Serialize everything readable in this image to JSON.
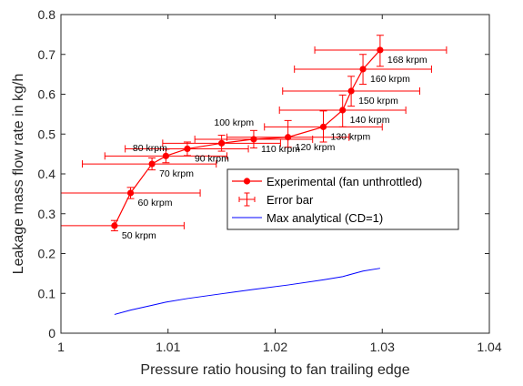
{
  "chart_data": {
    "type": "line",
    "xlabel": "Pressure ratio housing to fan trailing edge",
    "ylabel": "Leakage mass flow rate in kg/h",
    "xlim": [
      1,
      1.04
    ],
    "ylim": [
      0,
      0.8
    ],
    "xticks": [
      1,
      1.01,
      1.02,
      1.03,
      1.04
    ],
    "xtick_labels": [
      "1",
      "1.01",
      "1.02",
      "1.03",
      "1.04"
    ],
    "yticks": [
      0,
      0.1,
      0.2,
      0.3,
      0.4,
      0.5,
      0.6,
      0.7,
      0.8
    ],
    "ytick_labels": [
      "0",
      "0.1",
      "0.2",
      "0.3",
      "0.4",
      "0.5",
      "0.6",
      "0.7",
      "0.8"
    ],
    "grid": false,
    "legend_position": "right-middle",
    "series": [
      {
        "name": "Experimental (fan unthrottled)",
        "color": "#ff0000",
        "marker": "circle",
        "points": [
          {
            "x": 1.005,
            "y": 0.27,
            "label": "50 krpm",
            "xerr": [
              1.0,
              1.0115
            ],
            "yerr": [
              0.257,
              0.283
            ]
          },
          {
            "x": 1.0065,
            "y": 0.352,
            "label": "60 krpm",
            "xerr": [
              1.0,
              1.013
            ],
            "yerr": [
              0.338,
              0.366
            ]
          },
          {
            "x": 1.0085,
            "y": 0.425,
            "label": "70 krpm",
            "xerr": [
              1.002,
              1.0145
            ],
            "yerr": [
              0.41,
              0.44
            ]
          },
          {
            "x": 1.0098,
            "y": 0.445,
            "label": "",
            "xerr": [
              1.0041,
              1.0155
            ],
            "yerr": [
              0.428,
              0.462
            ]
          },
          {
            "x": 1.0118,
            "y": 0.463,
            "label": "90 krpm",
            "xerr": [
              1.006,
              1.0175
            ],
            "yerr": [
              0.446,
              0.48
            ]
          },
          {
            "x": 1.015,
            "y": 0.477,
            "label": "",
            "xerr": [
              1.0095,
              1.0205
            ],
            "yerr": [
              0.457,
              0.497
            ]
          },
          {
            "x": 1.018,
            "y": 0.487,
            "label": "110 krpm",
            "xerr": [
              1.0125,
              1.0235
            ],
            "yerr": [
              0.465,
              0.509
            ]
          },
          {
            "x": 1.0212,
            "y": 0.492,
            "label": "120 krpm",
            "xerr": [
              1.0155,
              1.0269
            ],
            "yerr": [
              0.467,
              0.534
            ]
          },
          {
            "x": 1.0245,
            "y": 0.518,
            "label": "130 krpm",
            "xerr": [
              1.019,
              1.03
            ],
            "yerr": [
              0.48,
              0.558
            ]
          },
          {
            "x": 1.0263,
            "y": 0.56,
            "label": "140 krpm",
            "xerr": [
              1.0204,
              1.0322
            ],
            "yerr": [
              0.518,
              0.598
            ]
          },
          {
            "x": 1.0271,
            "y": 0.608,
            "label": "150 krpm",
            "xerr": [
              1.0207,
              1.0335
            ],
            "yerr": [
              0.57,
              0.645
            ]
          },
          {
            "x": 1.0282,
            "y": 0.663,
            "label": "160 krpm",
            "xerr": [
              1.0218,
              1.0346
            ],
            "yerr": [
              0.625,
              0.7
            ]
          },
          {
            "x": 1.0298,
            "y": 0.711,
            "label": "168 krpm",
            "xerr": [
              1.0237,
              1.036
            ],
            "yerr": [
              0.67,
              0.748
            ]
          }
        ],
        "extra_labels": [
          {
            "label": "80 krpm",
            "x": 1.0067,
            "y": 0.466
          },
          {
            "label": "100 krpm",
            "x": 1.0143,
            "y": 0.53
          }
        ]
      },
      {
        "name": "Error bar",
        "color": "#ff0000",
        "marker": "errorbar"
      },
      {
        "name": "Max analytical (CD=1)",
        "color": "#0000ff",
        "marker": "none",
        "points": [
          {
            "x": 1.005,
            "y": 0.047
          },
          {
            "x": 1.0065,
            "y": 0.058
          },
          {
            "x": 1.0085,
            "y": 0.07
          },
          {
            "x": 1.0098,
            "y": 0.078
          },
          {
            "x": 1.0118,
            "y": 0.087
          },
          {
            "x": 1.015,
            "y": 0.099
          },
          {
            "x": 1.018,
            "y": 0.11
          },
          {
            "x": 1.0212,
            "y": 0.121
          },
          {
            "x": 1.0245,
            "y": 0.134
          },
          {
            "x": 1.0263,
            "y": 0.142
          },
          {
            "x": 1.0271,
            "y": 0.148
          },
          {
            "x": 1.0282,
            "y": 0.156
          },
          {
            "x": 1.0298,
            "y": 0.163
          }
        ]
      }
    ]
  }
}
